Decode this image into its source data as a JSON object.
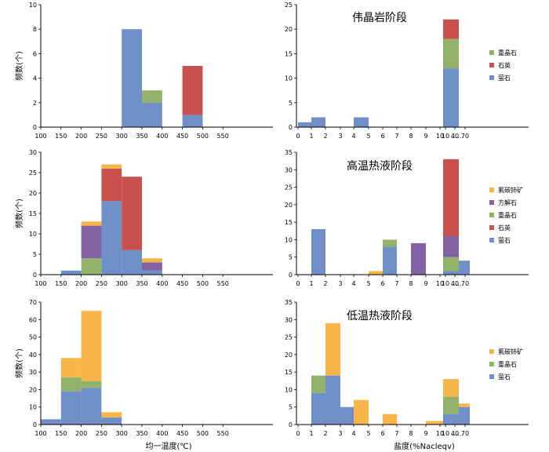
{
  "colors": {
    "萤石": "#6f8fc8",
    "重晶石": "#92b26a",
    "石英": "#c8504d",
    "方解石": "#8163a3",
    "氟碳铈矿": "#f8b54a"
  },
  "chart_data": [
    {
      "id": "temp-1",
      "type": "bar",
      "stacked": true,
      "ylabel": "频数(个)",
      "xlabel": "",
      "x_ticks": [
        "100",
        "150",
        "200",
        "250",
        "300",
        "350",
        "400",
        "450",
        "500",
        "550"
      ],
      "ylim": [
        0,
        10
      ],
      "y_ticks": [
        0,
        2,
        4,
        6,
        8,
        10
      ],
      "series": [
        {
          "name": "萤石",
          "bins": [
            {
              "from": "300",
              "to": "350",
              "value": 8
            },
            {
              "from": "350",
              "to": "400",
              "value": 2
            },
            {
              "from": "450",
              "to": "500",
              "value": 1
            }
          ]
        },
        {
          "name": "重晶石",
          "bins": [
            {
              "from": "350",
              "to": "400",
              "value": 1
            }
          ]
        },
        {
          "name": "石英",
          "bins": [
            {
              "from": "450",
              "to": "500",
              "value": 4
            }
          ]
        }
      ]
    },
    {
      "id": "salinity-1",
      "type": "bar",
      "stacked": true,
      "title": "伟晶岩阶段",
      "ylabel": "",
      "xlabel": "",
      "x_ticks": [
        "0",
        "1",
        "2",
        "3",
        "4",
        "5",
        "6",
        "7",
        "8",
        "9",
        "10",
        "……",
        "10",
        "40",
        "70"
      ],
      "ylim": [
        0,
        25
      ],
      "y_ticks": [
        0,
        5,
        10,
        15,
        20,
        25
      ],
      "legend": [
        "重晶石",
        "石英",
        "萤石"
      ],
      "series": [
        {
          "name": "萤石",
          "bins": [
            {
              "from": "0",
              "to": "1",
              "value": 1
            },
            {
              "from": "1",
              "to": "2",
              "value": 2
            },
            {
              "from": "4",
              "to": "5",
              "value": 2
            },
            {
              "from": "10",
              "to": "40",
              "value": 12
            }
          ]
        },
        {
          "name": "石英",
          "bins": [
            {
              "from": "10",
              "to": "40",
              "value": 4
            }
          ]
        },
        {
          "name": "重晶石",
          "bins": [
            {
              "from": "10",
              "to": "40",
              "value": 6
            }
          ]
        }
      ]
    },
    {
      "id": "temp-2",
      "type": "bar",
      "stacked": true,
      "ylabel": "频数(个)",
      "xlabel": "",
      "x_ticks": [
        "100",
        "150",
        "200",
        "250",
        "300",
        "350",
        "400",
        "450",
        "500",
        "550"
      ],
      "ylim": [
        0,
        30
      ],
      "y_ticks": [
        0,
        5,
        10,
        15,
        20,
        25,
        30
      ],
      "series": [
        {
          "name": "萤石",
          "bins": [
            {
              "from": "150",
              "to": "200",
              "value": 1
            },
            {
              "from": "250",
              "to": "300",
              "value": 18
            },
            {
              "from": "300",
              "to": "350",
              "value": 6
            },
            {
              "from": "350",
              "to": "400",
              "value": 1
            }
          ]
        },
        {
          "name": "重晶石",
          "bins": [
            {
              "from": "200",
              "to": "250",
              "value": 4
            }
          ]
        },
        {
          "name": "方解石",
          "bins": [
            {
              "from": "200",
              "to": "250",
              "value": 8
            },
            {
              "from": "350",
              "to": "400",
              "value": 2
            }
          ]
        },
        {
          "name": "石英",
          "bins": [
            {
              "from": "250",
              "to": "300",
              "value": 8
            },
            {
              "from": "300",
              "to": "350",
              "value": 18
            }
          ]
        },
        {
          "name": "氟碳铈矿",
          "bins": [
            {
              "from": "200",
              "to": "250",
              "value": 1
            },
            {
              "from": "250",
              "to": "300",
              "value": 1
            },
            {
              "from": "350",
              "to": "400",
              "value": 1
            }
          ]
        }
      ]
    },
    {
      "id": "salinity-2",
      "type": "bar",
      "stacked": true,
      "title": "高温热液阶段",
      "ylabel": "",
      "xlabel": "",
      "x_ticks": [
        "0",
        "1",
        "2",
        "3",
        "4",
        "5",
        "6",
        "7",
        "8",
        "9",
        "10",
        "……",
        "10",
        "40",
        "70"
      ],
      "ylim": [
        0,
        35
      ],
      "y_ticks": [
        0,
        5,
        10,
        15,
        20,
        25,
        30,
        35
      ],
      "legend": [
        "氟碳铈矿",
        "方解石",
        "重晶石",
        "石英",
        "萤石"
      ],
      "series": [
        {
          "name": "萤石",
          "bins": [
            {
              "from": "1",
              "to": "2",
              "value": 13
            },
            {
              "from": "6",
              "to": "7",
              "value": 8
            },
            {
              "from": "10",
              "to": "40",
              "value": 1
            },
            {
              "from": "40",
              "to": "70",
              "value": 4
            }
          ]
        },
        {
          "name": "石英",
          "bins": [
            {
              "from": "10",
              "to": "40",
              "value": 22
            }
          ]
        },
        {
          "name": "重晶石",
          "bins": [
            {
              "from": "6",
              "to": "7",
              "value": 2
            },
            {
              "from": "10",
              "to": "40",
              "value": 4
            }
          ]
        },
        {
          "name": "方解石",
          "bins": [
            {
              "from": "8",
              "to": "9",
              "value": 9
            },
            {
              "from": "10",
              "to": "40",
              "value": 6
            }
          ]
        },
        {
          "name": "氟碳铈矿",
          "bins": [
            {
              "from": "5",
              "to": "6",
              "value": 1
            }
          ]
        }
      ]
    },
    {
      "id": "temp-3",
      "type": "bar",
      "stacked": true,
      "ylabel": "频数(个)",
      "xlabel": "均一温度(℃)",
      "x_ticks": [
        "100",
        "150",
        "200",
        "250",
        "300",
        "350",
        "400",
        "450",
        "500",
        "550"
      ],
      "ylim": [
        0,
        70
      ],
      "y_ticks": [
        0,
        10,
        20,
        30,
        40,
        50,
        60,
        70
      ],
      "series": [
        {
          "name": "萤石",
          "bins": [
            {
              "from": "100",
              "to": "150",
              "value": 3
            },
            {
              "from": "150",
              "to": "200",
              "value": 19
            },
            {
              "from": "200",
              "to": "250",
              "value": 21
            },
            {
              "from": "250",
              "to": "300",
              "value": 4
            }
          ]
        },
        {
          "name": "重晶石",
          "bins": [
            {
              "from": "150",
              "to": "200",
              "value": 8
            },
            {
              "from": "200",
              "to": "250",
              "value": 4
            }
          ]
        },
        {
          "name": "氟碳铈矿",
          "bins": [
            {
              "from": "150",
              "to": "200",
              "value": 11
            },
            {
              "from": "200",
              "to": "250",
              "value": 40
            },
            {
              "from": "250",
              "to": "300",
              "value": 3
            }
          ]
        }
      ]
    },
    {
      "id": "salinity-3",
      "type": "bar",
      "stacked": true,
      "title": "低温热液阶段",
      "ylabel": "",
      "xlabel": "盐度(%Nacleqv)",
      "x_ticks": [
        "0",
        "1",
        "2",
        "3",
        "4",
        "5",
        "6",
        "7",
        "8",
        "9",
        "10",
        "……",
        "10",
        "40",
        "70"
      ],
      "ylim": [
        0,
        35
      ],
      "y_ticks": [
        0,
        5,
        10,
        15,
        20,
        25,
        30,
        35
      ],
      "legend": [
        "氟碳铈矿",
        "重晶石",
        "萤石"
      ],
      "series": [
        {
          "name": "萤石",
          "bins": [
            {
              "from": "1",
              "to": "2",
              "value": 9
            },
            {
              "from": "2",
              "to": "3",
              "value": 14
            },
            {
              "from": "3",
              "to": "4",
              "value": 5
            },
            {
              "from": "10",
              "to": "40",
              "value": 3
            },
            {
              "from": "40",
              "to": "70",
              "value": 5
            }
          ]
        },
        {
          "name": "重晶石",
          "bins": [
            {
              "from": "1",
              "to": "2",
              "value": 5
            },
            {
              "from": "10",
              "to": "40",
              "value": 5
            }
          ]
        },
        {
          "name": "氟碳铈矿",
          "bins": [
            {
              "from": "2",
              "to": "3",
              "value": 15
            },
            {
              "from": "4",
              "to": "5",
              "value": 7
            },
            {
              "from": "6",
              "to": "7",
              "value": 3
            },
            {
              "from": "9",
              "to": "10",
              "value": 1
            },
            {
              "from": "10",
              "to": "40",
              "value": 5
            },
            {
              "from": "40",
              "to": "70",
              "value": 1
            }
          ]
        }
      ]
    }
  ]
}
